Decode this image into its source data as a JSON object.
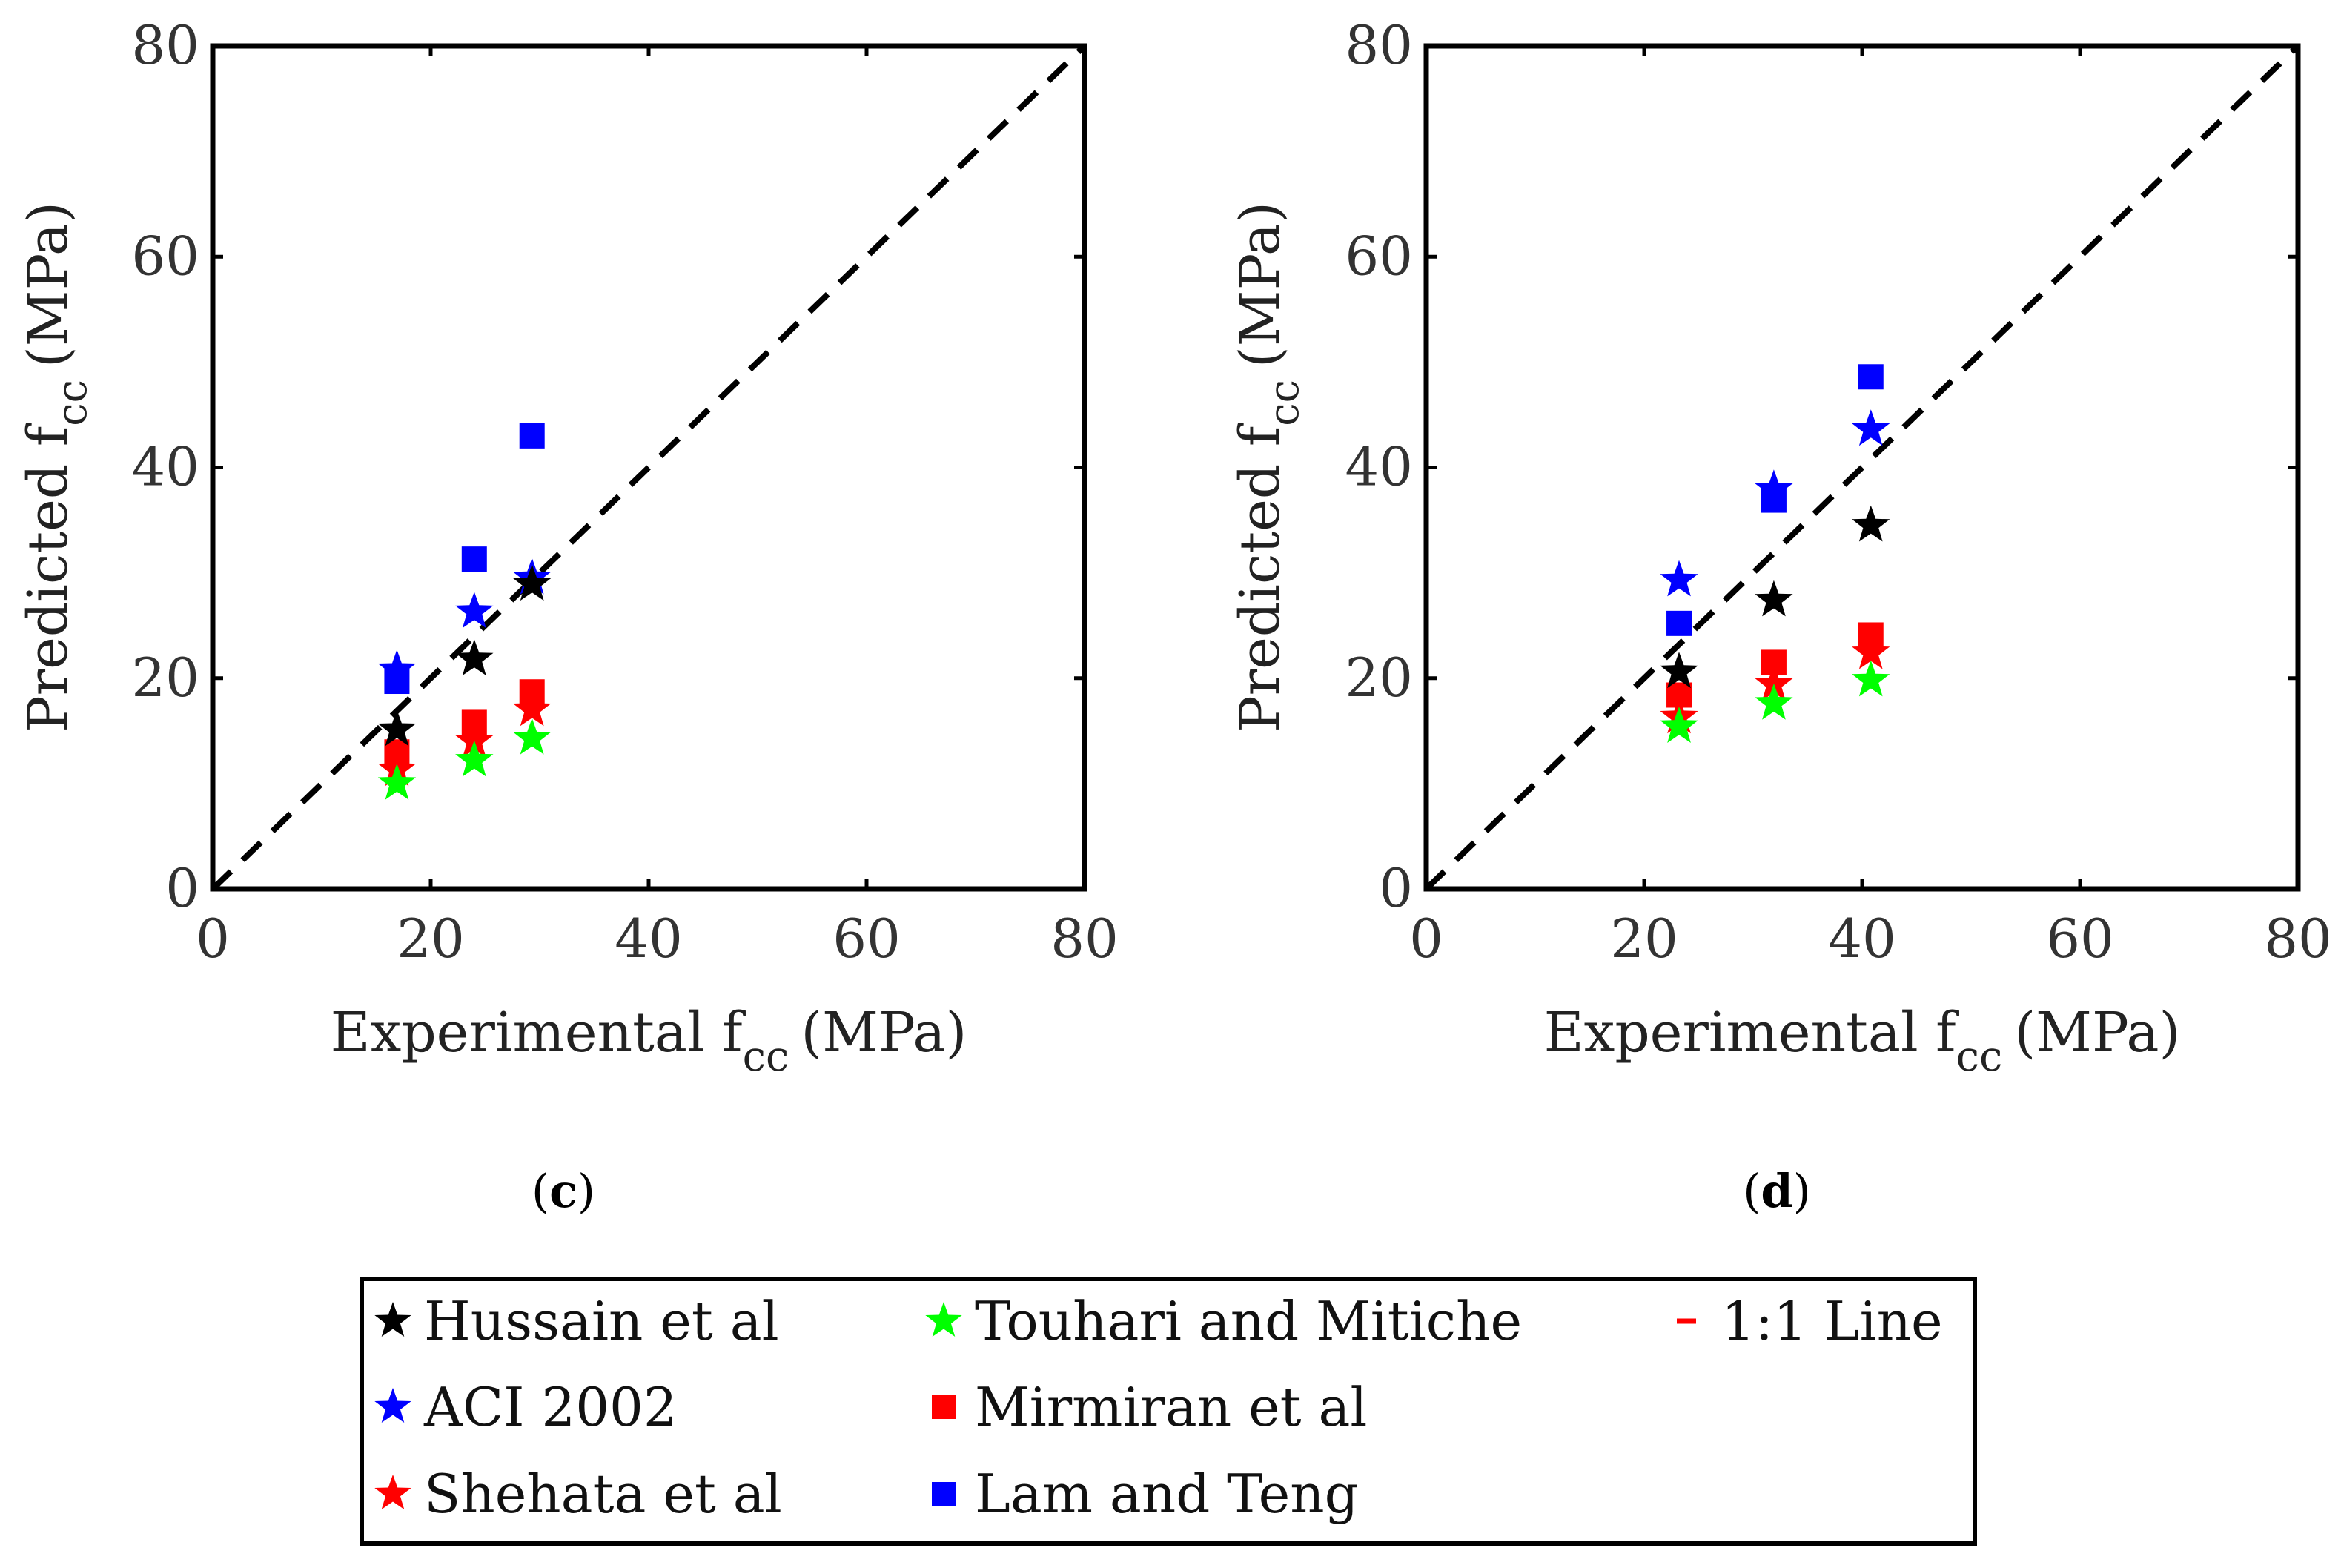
{
  "figure": {
    "panels": [
      {
        "caption_open": "(",
        "caption_letter": "c",
        "caption_close": ")"
      },
      {
        "caption_open": "(",
        "caption_letter": "d",
        "caption_close": ")"
      }
    ],
    "legend": {
      "entries": [
        {
          "label": "Hussain et al",
          "symbol": "star",
          "color": "#000000"
        },
        {
          "label": "ACI 2002",
          "symbol": "star",
          "color": "#0000ff"
        },
        {
          "label": "Shehata et al",
          "symbol": "star",
          "color": "#ff0000"
        },
        {
          "label": "Touhari and Mitiche",
          "symbol": "star",
          "color": "#00ff00"
        },
        {
          "label": "Mirmiran et al",
          "symbol": "square",
          "color": "#ff0000"
        },
        {
          "label": "Lam and Teng",
          "symbol": "square",
          "color": "#0000ff"
        },
        {
          "label": "1:1 Line",
          "symbol": "dash",
          "color": "#ff0000"
        }
      ]
    }
  },
  "chart_data": [
    {
      "type": "scatter",
      "panel": "c",
      "xlabel_main": "Experimental f",
      "xlabel_sub": "cc",
      "xlabel_unit": "(MPa)",
      "ylabel_main": "Predicted f",
      "ylabel_sub": "cc",
      "ylabel_unit": "(MPa)",
      "xlim": [
        0,
        80
      ],
      "ylim": [
        0,
        80
      ],
      "xticks": [
        0,
        20,
        40,
        60,
        80
      ],
      "yticks": [
        0,
        20,
        40,
        60,
        80
      ],
      "reference_line": {
        "name": "1:1 Line",
        "x": [
          0,
          80
        ],
        "y": [
          0,
          80
        ]
      },
      "series": [
        {
          "name": "Lam and Teng",
          "marker": "square",
          "color": "#0000ff",
          "x": [
            16.9,
            24.0,
            29.3
          ],
          "y": [
            19.7,
            31.3,
            43.0
          ]
        },
        {
          "name": "Mirmiran et al",
          "marker": "square",
          "color": "#ff0000",
          "x": [
            16.9,
            24.0,
            29.3
          ],
          "y": [
            13.0,
            15.8,
            18.7
          ]
        },
        {
          "name": "ACI 2002",
          "marker": "star",
          "color": "#0000ff",
          "x": [
            16.9,
            24.0,
            29.3
          ],
          "y": [
            20.8,
            26.3,
            29.5
          ]
        },
        {
          "name": "Shehata et al",
          "marker": "star",
          "color": "#ff0000",
          "x": [
            16.9,
            24.0,
            29.3
          ],
          "y": [
            11.3,
            14.0,
            17.0
          ]
        },
        {
          "name": "Touhari and Mitiche",
          "marker": "star",
          "color": "#00ff00",
          "x": [
            16.9,
            24.0,
            29.3
          ],
          "y": [
            10.0,
            12.2,
            14.3
          ]
        },
        {
          "name": "Hussain et al",
          "marker": "star",
          "color": "#000000",
          "x": [
            16.9,
            24.0,
            29.3
          ],
          "y": [
            15.1,
            21.8,
            28.9
          ]
        }
      ]
    },
    {
      "type": "scatter",
      "panel": "d",
      "xlabel_main": "Experimental f",
      "xlabel_sub": "cc",
      "xlabel_unit": "(MPa)",
      "ylabel_main": "Predicted f",
      "ylabel_sub": "cc",
      "ylabel_unit": "(MPa)",
      "xlim": [
        0,
        80
      ],
      "ylim": [
        0,
        80
      ],
      "xticks": [
        0,
        20,
        40,
        60,
        80
      ],
      "yticks": [
        0,
        20,
        40,
        60,
        80
      ],
      "reference_line": {
        "name": "1:1 Line",
        "x": [
          0,
          80
        ],
        "y": [
          0,
          80
        ]
      },
      "series": [
        {
          "name": "Lam and Teng",
          "marker": "square",
          "color": "#0000ff",
          "x": [
            23.2,
            31.9,
            40.8
          ],
          "y": [
            25.2,
            36.9,
            48.6
          ]
        },
        {
          "name": "Mirmiran et al",
          "marker": "square",
          "color": "#ff0000",
          "x": [
            23.2,
            31.9,
            40.8
          ],
          "y": [
            18.4,
            21.5,
            24.1
          ]
        },
        {
          "name": "ACI 2002",
          "marker": "star",
          "color": "#0000ff",
          "x": [
            23.2,
            31.9,
            40.8
          ],
          "y": [
            29.3,
            37.9,
            43.6
          ]
        },
        {
          "name": "Shehata et al",
          "marker": "star",
          "color": "#ff0000",
          "x": [
            23.2,
            31.9,
            40.8
          ],
          "y": [
            16.3,
            19.4,
            22.4
          ]
        },
        {
          "name": "Touhari and Mitiche",
          "marker": "star",
          "color": "#00ff00",
          "x": [
            23.2,
            31.9,
            40.8
          ],
          "y": [
            15.4,
            17.6,
            19.8
          ]
        },
        {
          "name": "Hussain et al",
          "marker": "star",
          "color": "#000000",
          "x": [
            23.2,
            31.9,
            40.8
          ],
          "y": [
            20.6,
            27.4,
            34.5
          ]
        }
      ]
    }
  ]
}
